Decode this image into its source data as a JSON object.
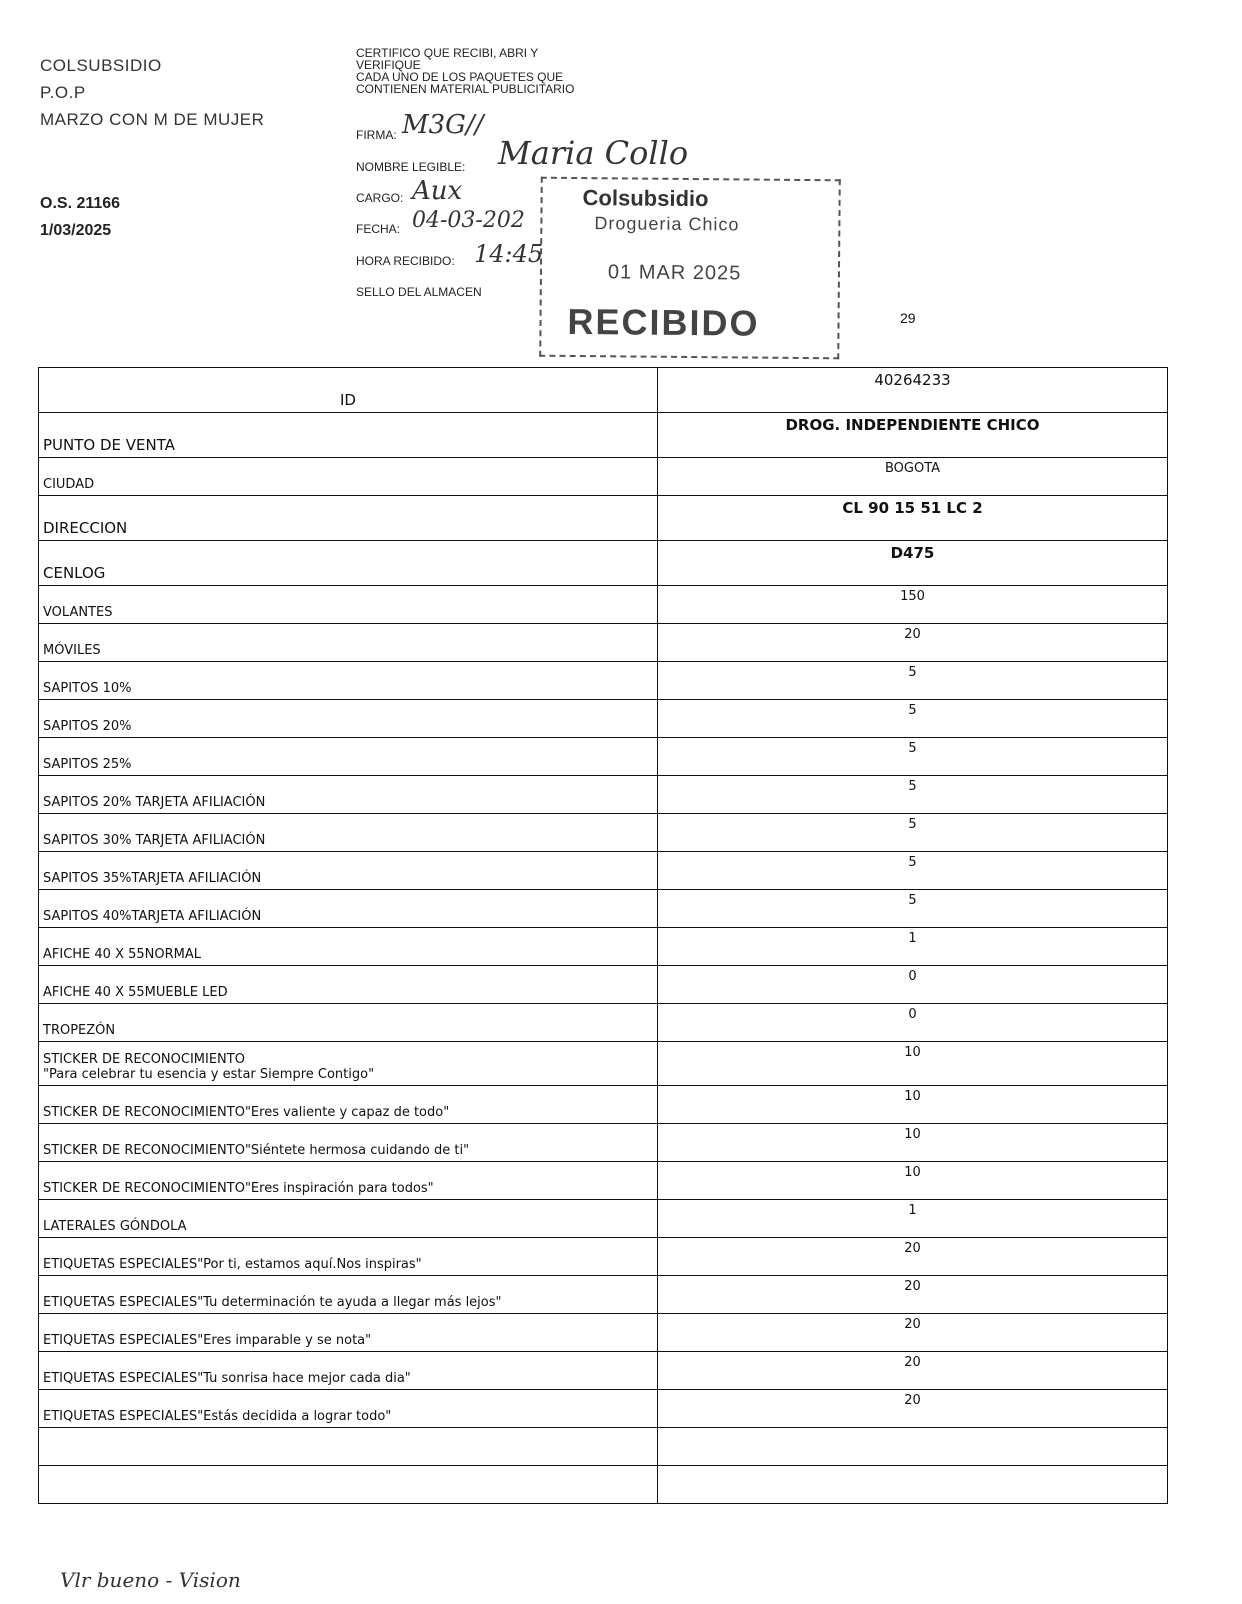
{
  "header": {
    "company": "COLSUBSIDIO",
    "type": "P.O.P",
    "campaign": "MARZO CON M DE MUJER",
    "order": "O.S. 21166",
    "date": "1/03/2025"
  },
  "certification": {
    "text_lines": [
      "CERTIFICO QUE RECIBI, ABRI Y",
      "VERIFIQUE",
      "CADA  UNO DE LOS PAQUETES QUE",
      "CONTIENEN MATERIAL PUBLICITARIO"
    ],
    "firma_label": "FIRMA:",
    "firma_value": "M3G//",
    "nombre_label": "NOMBRE LEGIBLE:",
    "nombre_value": "Maria Collo",
    "cargo_label": "CARGO:",
    "cargo_value": "Aux",
    "fecha_label": "FECHA:",
    "fecha_value": "04-03-202",
    "hora_label": "HORA RECIBIDO:",
    "hora_value": "14:45",
    "sello_label": "SELLO DEL ALMACEN"
  },
  "stamp": {
    "brand": "Colsubsidio",
    "store": "Drogueria Chico",
    "date": "01 MAR 2025",
    "status": "RECIBIDO"
  },
  "page_number": "29",
  "table": {
    "rows": [
      {
        "label": "ID",
        "value": "40264233"
      },
      {
        "label": "PUNTO DE VENTA",
        "value": "DROG. INDEPENDIENTE CHICO"
      },
      {
        "label": "CIUDAD",
        "value": "BOGOTA"
      },
      {
        "label": "DIRECCION",
        "value": "CL 90 15 51 LC 2"
      },
      {
        "label": "CENLOG",
        "value": "D475"
      },
      {
        "label": "VOLANTES",
        "value": "150"
      },
      {
        "label": "MÓVILES",
        "value": "20"
      },
      {
        "label": "SAPITOS 10%",
        "value": "5"
      },
      {
        "label": "SAPITOS 20%",
        "value": "5"
      },
      {
        "label": "SAPITOS 25%",
        "value": "5"
      },
      {
        "label": "SAPITOS 20% TARJETA AFILIACIÓN",
        "value": "5"
      },
      {
        "label": "SAPITOS 30% TARJETA AFILIACIÓN",
        "value": "5"
      },
      {
        "label": "SAPITOS 35%TARJETA AFILIACIÓN",
        "value": "5"
      },
      {
        "label": "SAPITOS 40%TARJETA AFILIACIÓN",
        "value": "5"
      },
      {
        "label": "AFICHE 40 X 55NORMAL",
        "value": "1"
      },
      {
        "label": "AFICHE 40 X 55MUEBLE LED",
        "value": "0"
      },
      {
        "label": "TROPEZÓN",
        "value": "0"
      },
      {
        "label": "STICKER DE RECONOCIMIENTO",
        "label2": "\"Para celebrar tu esencia y estar Siempre Contigo\"",
        "value": "10"
      },
      {
        "label": "STICKER DE RECONOCIMIENTO\"Eres valiente y capaz de todo\"",
        "value": "10"
      },
      {
        "label": "STICKER DE RECONOCIMIENTO\"Siéntete hermosa cuidando de ti\"",
        "value": "10"
      },
      {
        "label": "STICKER DE RECONOCIMIENTO\"Eres inspiración para todos\"",
        "value": "10"
      },
      {
        "label": "LATERALES GÓNDOLA",
        "value": "1"
      },
      {
        "label": "ETIQUETAS ESPECIALES\"Por ti, estamos aquí.Nos inspiras\"",
        "value": "20"
      },
      {
        "label": "ETIQUETAS ESPECIALES\"Tu determinación te ayuda a llegar más lejos\"",
        "value": "20"
      },
      {
        "label": "ETIQUETAS ESPECIALES\"Eres imparable y se nota\"",
        "value": "20"
      },
      {
        "label": "ETIQUETAS ESPECIALES\"Tu sonrisa hace mejor cada dia\"",
        "value": "20"
      },
      {
        "label": "ETIQUETAS ESPECIALES\"Estás decidida a lograr todo\"",
        "value": "20"
      },
      {
        "label": "",
        "value": ""
      },
      {
        "label": "",
        "value": ""
      }
    ]
  },
  "footer_handwriting": "Vlr bueno - Vision"
}
